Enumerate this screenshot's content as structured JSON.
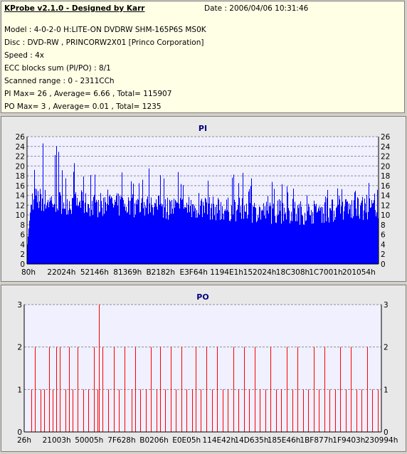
{
  "header": {
    "app_title": "KProbe v2.1.0 - Designed by Karr",
    "date": "Date : 2006/04/06 10:31:46",
    "model": "Model : 4-0-2-0 H:LITE-ON DVDRW SHM-165P6S MS0K",
    "disc": "Disc : DVD-RW , PRINCORW2X01 [Princo Corporation]",
    "speed": "Speed : 4x",
    "ecc": "ECC blocks sum (PI/PO) : 8/1",
    "range": "Scanned range : 0 - 2311CCh",
    "pi_stats": "PI Max= 26 , Average= 6.66 , Total= 115907",
    "po_stats": "PO Max= 3 , Average= 0.01 , Total= 1235"
  },
  "colors": {
    "pi_bar": "#0000ff",
    "po_bar": "#ff0000",
    "title": "#000080",
    "plot_bg": "#f0f0ff",
    "grid": "#909090"
  },
  "chart_data": [
    {
      "type": "bar",
      "title": "PI",
      "ylim": [
        0,
        26
      ],
      "yticks": [
        0,
        2,
        4,
        6,
        8,
        10,
        12,
        14,
        16,
        18,
        20,
        22,
        24,
        26
      ],
      "xtick_labels": [
        "80h",
        "22024h",
        "52146h",
        "81369h",
        "B2182h",
        "E3F64h",
        "1194E1h",
        "152024h",
        "18C308h",
        "1C7001h",
        "201054h"
      ],
      "grid": "horizontal dashed",
      "average": 6.66,
      "max": 26,
      "profile": [
        {
          "x": 0.0,
          "base": 13.5,
          "peak": 24
        },
        {
          "x": 0.05,
          "base": 13.0,
          "peak": 26
        },
        {
          "x": 0.12,
          "base": 12.5,
          "peak": 22
        },
        {
          "x": 0.2,
          "base": 12.0,
          "peak": 20
        },
        {
          "x": 0.3,
          "base": 12.0,
          "peak": 19
        },
        {
          "x": 0.4,
          "base": 11.5,
          "peak": 21
        },
        {
          "x": 0.5,
          "base": 11.5,
          "peak": 18
        },
        {
          "x": 0.6,
          "base": 11.0,
          "peak": 20
        },
        {
          "x": 0.7,
          "base": 10.5,
          "peak": 17
        },
        {
          "x": 0.8,
          "base": 10.5,
          "peak": 15
        },
        {
          "x": 0.9,
          "base": 11.0,
          "peak": 16
        },
        {
          "x": 1.0,
          "base": 11.5,
          "peak": 17
        }
      ]
    },
    {
      "type": "bar",
      "title": "PO",
      "ylim": [
        0,
        3
      ],
      "yticks": [
        0,
        1,
        2,
        3
      ],
      "xtick_labels": [
        "26h",
        "21003h",
        "50005h",
        "7F628h",
        "B0206h",
        "E0E05h",
        "114E42h",
        "14D635h",
        "185E46h",
        "1BF877h",
        "1F9403h",
        "230994h"
      ],
      "grid": "horizontal dashed",
      "average": 0.01,
      "max": 3,
      "spikes": [
        {
          "x": 0.02,
          "v": 1
        },
        {
          "x": 0.03,
          "v": 2
        },
        {
          "x": 0.045,
          "v": 1
        },
        {
          "x": 0.055,
          "v": 1
        },
        {
          "x": 0.07,
          "v": 2
        },
        {
          "x": 0.08,
          "v": 1
        },
        {
          "x": 0.09,
          "v": 2
        },
        {
          "x": 0.1,
          "v": 2
        },
        {
          "x": 0.115,
          "v": 1
        },
        {
          "x": 0.125,
          "v": 2
        },
        {
          "x": 0.135,
          "v": 1
        },
        {
          "x": 0.15,
          "v": 2
        },
        {
          "x": 0.165,
          "v": 1
        },
        {
          "x": 0.18,
          "v": 1
        },
        {
          "x": 0.195,
          "v": 2
        },
        {
          "x": 0.205,
          "v": 1
        },
        {
          "x": 0.21,
          "v": 3
        },
        {
          "x": 0.22,
          "v": 2
        },
        {
          "x": 0.235,
          "v": 1
        },
        {
          "x": 0.25,
          "v": 2
        },
        {
          "x": 0.265,
          "v": 1
        },
        {
          "x": 0.28,
          "v": 2
        },
        {
          "x": 0.3,
          "v": 1
        },
        {
          "x": 0.31,
          "v": 2
        },
        {
          "x": 0.325,
          "v": 1
        },
        {
          "x": 0.34,
          "v": 1
        },
        {
          "x": 0.355,
          "v": 2
        },
        {
          "x": 0.37,
          "v": 1
        },
        {
          "x": 0.38,
          "v": 2
        },
        {
          "x": 0.395,
          "v": 1
        },
        {
          "x": 0.41,
          "v": 2
        },
        {
          "x": 0.425,
          "v": 1
        },
        {
          "x": 0.44,
          "v": 2
        },
        {
          "x": 0.455,
          "v": 1
        },
        {
          "x": 0.47,
          "v": 1
        },
        {
          "x": 0.48,
          "v": 2
        },
        {
          "x": 0.495,
          "v": 1
        },
        {
          "x": 0.51,
          "v": 2
        },
        {
          "x": 0.525,
          "v": 1
        },
        {
          "x": 0.54,
          "v": 2
        },
        {
          "x": 0.555,
          "v": 1
        },
        {
          "x": 0.57,
          "v": 1
        },
        {
          "x": 0.585,
          "v": 2
        },
        {
          "x": 0.6,
          "v": 1
        },
        {
          "x": 0.615,
          "v": 2
        },
        {
          "x": 0.63,
          "v": 1
        },
        {
          "x": 0.645,
          "v": 2
        },
        {
          "x": 0.66,
          "v": 1
        },
        {
          "x": 0.675,
          "v": 1
        },
        {
          "x": 0.69,
          "v": 2
        },
        {
          "x": 0.705,
          "v": 1
        },
        {
          "x": 0.72,
          "v": 1
        },
        {
          "x": 0.735,
          "v": 2
        },
        {
          "x": 0.75,
          "v": 1
        },
        {
          "x": 0.765,
          "v": 2
        },
        {
          "x": 0.78,
          "v": 1
        },
        {
          "x": 0.795,
          "v": 1
        },
        {
          "x": 0.81,
          "v": 2
        },
        {
          "x": 0.825,
          "v": 1
        },
        {
          "x": 0.84,
          "v": 2
        },
        {
          "x": 0.855,
          "v": 1
        },
        {
          "x": 0.87,
          "v": 1
        },
        {
          "x": 0.885,
          "v": 2
        },
        {
          "x": 0.9,
          "v": 1
        },
        {
          "x": 0.915,
          "v": 2
        },
        {
          "x": 0.93,
          "v": 1
        },
        {
          "x": 0.945,
          "v": 1
        },
        {
          "x": 0.96,
          "v": 2
        },
        {
          "x": 0.975,
          "v": 1
        },
        {
          "x": 0.99,
          "v": 1
        }
      ]
    }
  ]
}
